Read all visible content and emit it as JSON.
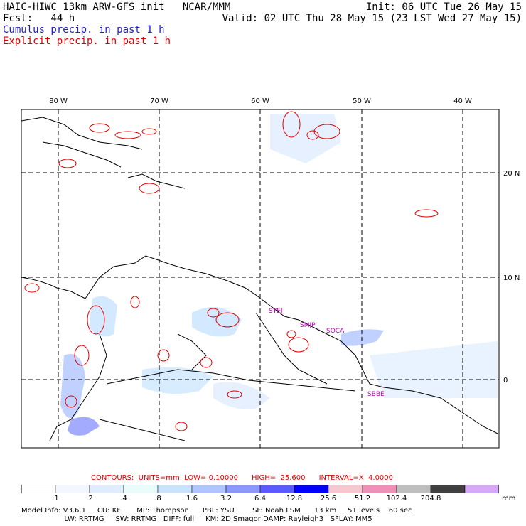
{
  "header": {
    "model_title": "HAIC-HIWC 13km ARW-GFS init",
    "institution": "NCAR/MMM",
    "init": "Init: 06 UTC Tue 26 May 15",
    "fcst_label": "Fcst:",
    "fcst_value": "44 h",
    "valid": "Valid: 02 UTC Thu 28 May 15 (23 LST Wed 27 May 15)",
    "cumulus_line": "Cumulus precip. in past 1 h",
    "explicit_line": "Explicit precip. in past 1 h"
  },
  "colors": {
    "cumulus": "#2020c0",
    "explicit": "#e00000",
    "coast": "#000000",
    "grid": "#000000",
    "station": "#c000c0"
  },
  "map": {
    "lon_labels": [
      "80 W",
      "70 W",
      "60 W",
      "50 W",
      "40 W"
    ],
    "lat_labels": [
      "20 N",
      "10 N",
      "0"
    ],
    "stations": [
      "SYEJ",
      "SMJP",
      "SOCA",
      "SBBE"
    ]
  },
  "contours": {
    "label": "CONTOURS:  UNITS=mm  LOW= 0.10000      HIGH=  25.600      INTERVAL=X  4.0000"
  },
  "colorbar": {
    "unit": "mm",
    "ticks": [
      ".1",
      ".2",
      ".4",
      ".8",
      "1.6",
      "3.2",
      "6.4",
      "12.8",
      "25.6",
      "51.2",
      "102.4",
      "204.8"
    ],
    "bin_colors": [
      "#ffffff",
      "#f2f6ff",
      "#e0ecff",
      "#e8fcfc",
      "#c8e4ff",
      "#b0c4ff",
      "#8c96ff",
      "#5a5aff",
      "#0000ff",
      "#f8c8d0",
      "#f090b8",
      "#bebebe",
      "#404040",
      "#d8a8f8"
    ]
  },
  "footer": {
    "line1": "Model Info: V3.6.1     CU: KF       MP: Thompson      PBL: YSU        SF: Noah LSM      13 km     51 levels    60 sec",
    "line2": "                   LW: RRTMG     SW: RRTMG   DIFF: full     KM: 2D Smagor DAMP: Rayleigh3   SFLAY: MM5"
  }
}
